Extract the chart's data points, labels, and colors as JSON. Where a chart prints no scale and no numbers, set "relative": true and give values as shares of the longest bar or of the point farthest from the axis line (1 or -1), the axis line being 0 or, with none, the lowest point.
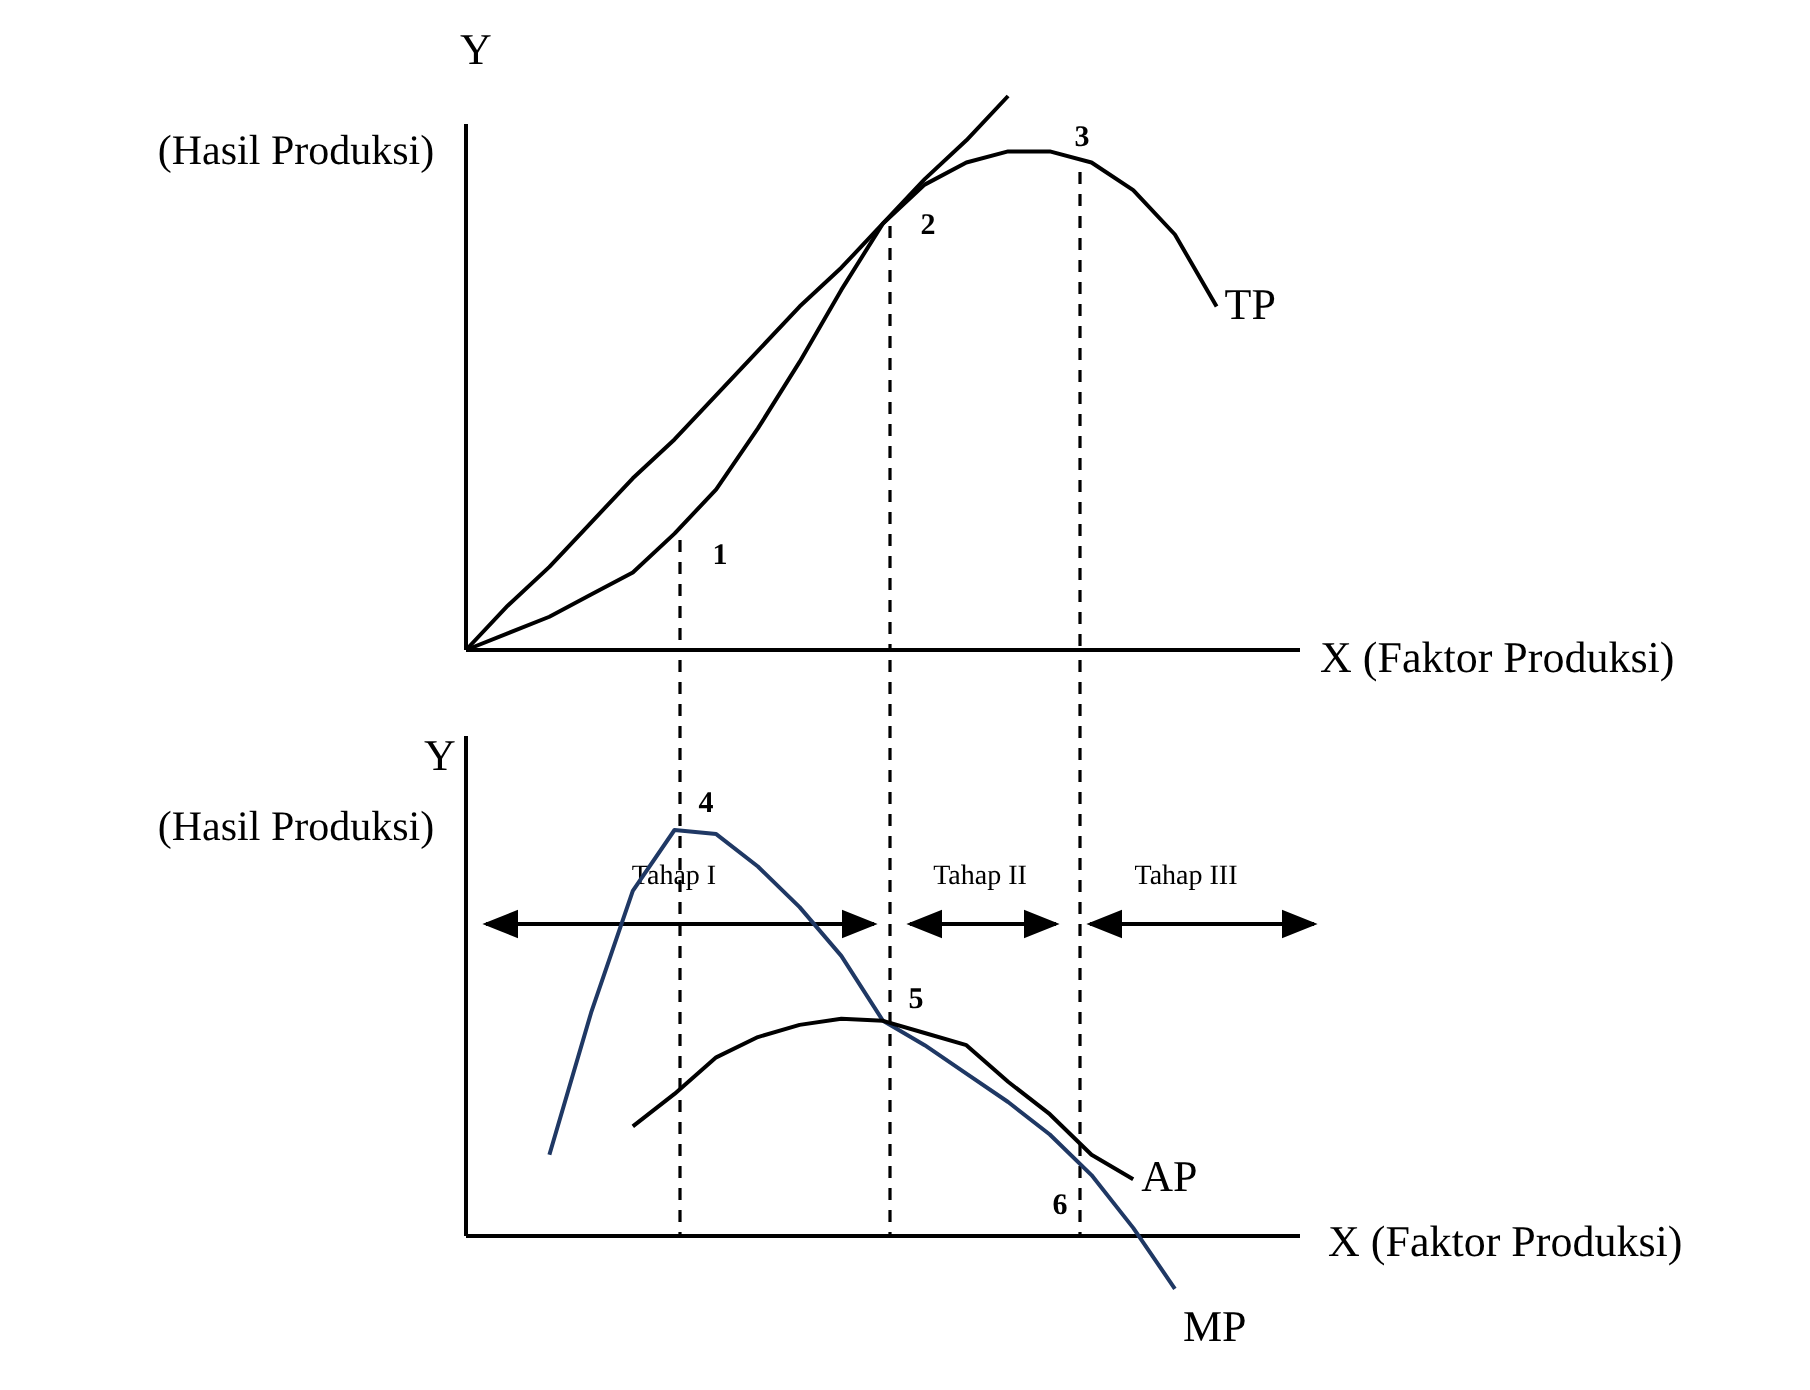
{
  "chart_data": [
    {
      "type": "line",
      "relative": true,
      "ylabel": "Y",
      "xlabel": "X  (Faktor Produksi)",
      "annotations": [
        "(Hasil Produksi)",
        "1",
        "2",
        "3"
      ],
      "categories": [
        null,
        null,
        null,
        null,
        null,
        null,
        null,
        null,
        null,
        null,
        null,
        null,
        null,
        null,
        null,
        null,
        null,
        null,
        null,
        null,
        null
      ],
      "series": [
        {
          "name": "TP",
          "color": "#000000",
          "values": [
            0,
            0.03,
            0.06,
            0.1,
            0.14,
            0.21,
            0.29,
            0.4,
            0.52,
            0.65,
            0.77,
            0.84,
            0.88,
            0.9,
            0.9,
            0.88,
            0.83,
            0.75,
            0.62,
            null,
            null
          ]
        },
        {
          "color": "#000000",
          "values": [
            0,
            0.08,
            0.15,
            0.23,
            0.31,
            0.38,
            0.46,
            0.54,
            0.62,
            0.69,
            0.77,
            0.85,
            0.92,
            1,
            null,
            null,
            null,
            null,
            null,
            null,
            null
          ]
        }
      ]
    },
    {
      "type": "line",
      "relative": true,
      "ylabel": "Y",
      "xlabel": "X (Faktor Produksi)",
      "annotations": [
        "(Hasil Produksi)",
        "Tahap I",
        "Tahap II",
        "Tahap III",
        "4",
        "5",
        "6"
      ],
      "categories": [
        null,
        null,
        null,
        null,
        null,
        null,
        null,
        null,
        null,
        null,
        null,
        null,
        null,
        null,
        null,
        null,
        null,
        null,
        null,
        null,
        null
      ],
      "series": [
        {
          "name": "MP",
          "color": "#1f3864",
          "values": [
            null,
            null,
            0.2,
            0.55,
            0.85,
            1,
            0.99,
            0.91,
            0.81,
            0.69,
            0.53,
            0.47,
            0.4,
            0.33,
            0.25,
            0.15,
            0.02,
            -0.13,
            null,
            null,
            null
          ]
        },
        {
          "name": "AP",
          "color": "#000000",
          "values": [
            null,
            null,
            null,
            null,
            0.27,
            0.35,
            0.44,
            0.49,
            0.52,
            0.535,
            0.53,
            0.5,
            0.47,
            0.38,
            0.3,
            0.2,
            0.14,
            null,
            null,
            null,
            null
          ]
        }
      ]
    }
  ]
}
